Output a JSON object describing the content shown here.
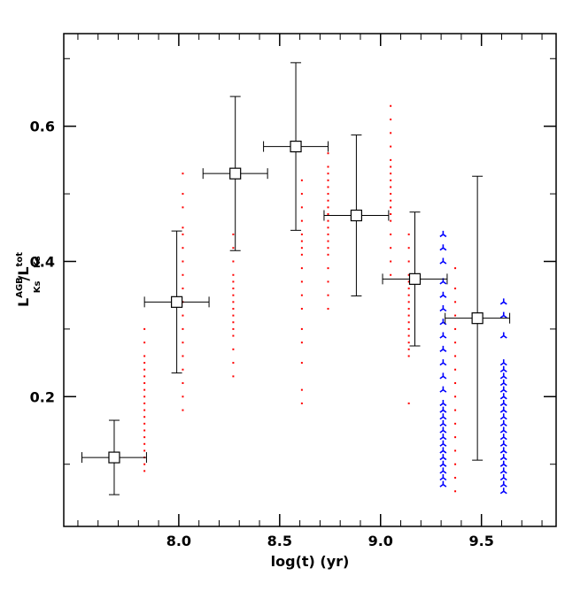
{
  "chart_data": {
    "type": "scatter",
    "xlabel": "log(t) (yr)",
    "ylabel": [
      "L",
      "AGB",
      "Ks",
      "/L",
      "tot",
      "Ks"
    ],
    "xlim": [
      7.43,
      9.87
    ],
    "ylim": [
      0.008,
      0.737
    ],
    "xticks": [
      {
        "value": 8,
        "label": "8.0"
      },
      8.5,
      {
        "value": 9,
        "label": "9.0"
      },
      9.5
    ],
    "yticks": [
      0.2,
      0.4,
      0.6
    ],
    "xminorticks": [
      7.5,
      7.6,
      7.7,
      7.8,
      7.9,
      8.1,
      8.2,
      8.3,
      8.4,
      8.6,
      8.7,
      8.8,
      8.9,
      9.1,
      9.2,
      9.3,
      9.4,
      9.6,
      9.7,
      9.8
    ],
    "yminorticks": [
      0.1,
      0.3,
      0.5,
      0.7
    ],
    "columns": [
      {
        "color": "#ff0000",
        "marker": "dot",
        "x": 7.83,
        "y": [
          0.09,
          0.1,
          0.11,
          0.12,
          0.13,
          0.14,
          0.15,
          0.16,
          0.17,
          0.18,
          0.19,
          0.2,
          0.21,
          0.22,
          0.23,
          0.24,
          0.25,
          0.26,
          0.28,
          0.3
        ]
      },
      {
        "color": "#ff0000",
        "marker": "dot",
        "x": 8.02,
        "y": [
          0.18,
          0.2,
          0.22,
          0.24,
          0.26,
          0.28,
          0.3,
          0.32,
          0.34,
          0.36,
          0.38,
          0.4,
          0.42,
          0.44,
          0.45,
          0.48,
          0.5,
          0.53
        ]
      },
      {
        "color": "#ff0000",
        "marker": "dot",
        "x": 8.27,
        "y": [
          0.23,
          0.25,
          0.27,
          0.29,
          0.3,
          0.31,
          0.32,
          0.33,
          0.34,
          0.35,
          0.36,
          0.37,
          0.38,
          0.4,
          0.42,
          0.44
        ]
      },
      {
        "color": "#ff0000",
        "marker": "dot",
        "x": 8.61,
        "y": [
          0.19,
          0.21,
          0.25,
          0.28,
          0.3,
          0.33,
          0.35,
          0.37,
          0.39,
          0.41,
          0.42,
          0.43,
          0.44,
          0.46,
          0.48,
          0.5,
          0.52
        ]
      },
      {
        "color": "#ff0000",
        "marker": "dot",
        "x": 8.74,
        "y": [
          0.33,
          0.35,
          0.37,
          0.39,
          0.41,
          0.42,
          0.43,
          0.44,
          0.45,
          0.46,
          0.47,
          0.48,
          0.49,
          0.5,
          0.51,
          0.52,
          0.53,
          0.54,
          0.56
        ]
      },
      {
        "color": "#ff0000",
        "marker": "dot",
        "x": 9.05,
        "y": [
          0.38,
          0.4,
          0.42,
          0.44,
          0.46,
          0.47,
          0.48,
          0.49,
          0.5,
          0.51,
          0.52,
          0.53,
          0.54,
          0.55,
          0.57,
          0.59,
          0.61,
          0.63
        ]
      },
      {
        "color": "#ff0000",
        "marker": "dot",
        "x": 9.14,
        "y": [
          0.19,
          0.26,
          0.27,
          0.28,
          0.29,
          0.3,
          0.31,
          0.32,
          0.33,
          0.34,
          0.35,
          0.36,
          0.37,
          0.38,
          0.4,
          0.42,
          0.44
        ]
      },
      {
        "color": "#ff0000",
        "marker": "dot",
        "x": 9.37,
        "y": [
          0.06,
          0.08,
          0.1,
          0.12,
          0.14,
          0.16,
          0.18,
          0.2,
          0.22,
          0.24,
          0.26,
          0.28,
          0.3,
          0.32,
          0.34,
          0.36,
          0.39
        ]
      },
      {
        "color": "#0000ff",
        "marker": "star",
        "x": 9.31,
        "y": [
          0.07,
          0.08,
          0.09,
          0.1,
          0.11,
          0.12,
          0.13,
          0.14,
          0.15,
          0.16,
          0.17,
          0.18,
          0.19,
          0.21,
          0.23,
          0.25,
          0.27,
          0.29,
          0.31,
          0.33,
          0.35,
          0.37,
          0.4,
          0.42,
          0.44
        ]
      },
      {
        "color": "#0000ff",
        "marker": "star",
        "x": 9.61,
        "y": [
          0.06,
          0.07,
          0.08,
          0.09,
          0.1,
          0.11,
          0.12,
          0.13,
          0.14,
          0.15,
          0.16,
          0.17,
          0.18,
          0.19,
          0.2,
          0.21,
          0.22,
          0.23,
          0.24,
          0.25,
          0.29,
          0.32,
          0.34
        ]
      }
    ],
    "binned": {
      "color": "#000000",
      "x": [
        7.68,
        7.99,
        8.28,
        8.58,
        8.88,
        9.17,
        9.48
      ],
      "y": [
        0.11,
        0.34,
        0.53,
        0.57,
        0.468,
        0.374,
        0.316
      ],
      "xerr": [
        0.16,
        0.16,
        0.16,
        0.16,
        0.16,
        0.16,
        0.16
      ],
      "yerr": [
        0.055,
        0.105,
        0.114,
        0.124,
        0.119,
        0.099,
        0.21
      ]
    }
  }
}
